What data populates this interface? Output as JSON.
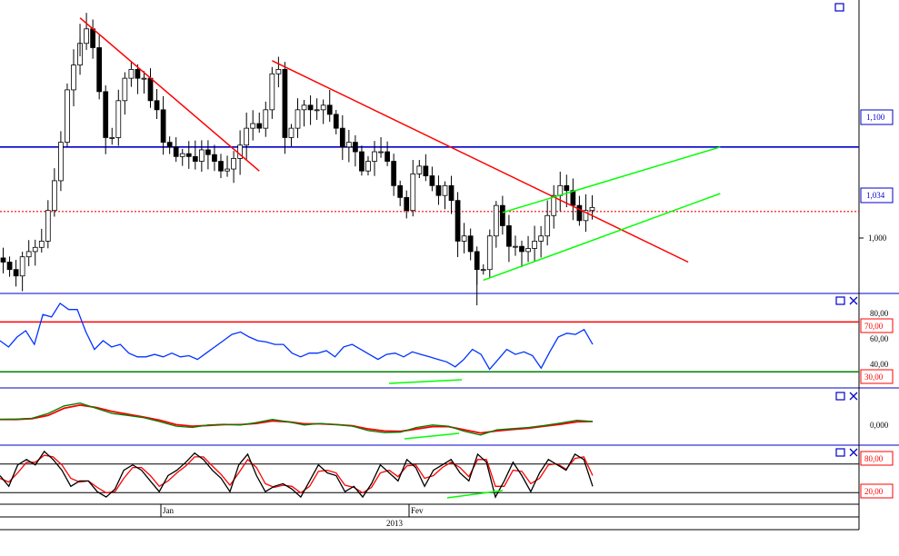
{
  "colors": {
    "up_candle": "#ffffff",
    "down_candle": "#000000",
    "candle_wick": "#000000",
    "trendline": "#ff0000",
    "channel": "#00ff00",
    "level_line": "#0000cc",
    "current_price_line": "#ff0000",
    "rsi_line": "#0033ff",
    "rsi_upper_band": "#ff0000",
    "rsi_lower_band": "#008000",
    "macd_line": "#008000",
    "signal_line": "#ff0000",
    "stoch_k": "#000000",
    "stoch_d": "#ff0000",
    "divergence_line": "#00ff00",
    "panel_border": "#0000cc",
    "axis_text": "#000000"
  },
  "icons": {
    "window_button": "window-restore-icon",
    "close_button": "close-icon"
  },
  "price_axis": {
    "ticks": [
      "1,000"
    ],
    "level_label": "1,100",
    "current_label": "1,034"
  },
  "rsi_axis": {
    "ticks": [
      "80,00",
      "60,00",
      "40,00"
    ],
    "upper_label": "70,00",
    "lower_label": "30,00"
  },
  "macd_axis": {
    "ticks": [
      "0,000"
    ]
  },
  "stoch_axis": {
    "upper_label": "80,00",
    "lower_label": "20,00"
  },
  "time_axis": {
    "month_labels": [
      "Jan",
      "Fev"
    ],
    "year_label": "2013"
  },
  "chart_data": [
    {
      "type": "candlestick",
      "panel": "price",
      "y_scale": "log",
      "ylim": [
        0.96,
        1.26
      ],
      "x_index_count": 93,
      "horizontal_levels": [
        {
          "value": 1.1,
          "label": "1,100",
          "style": "solid",
          "color": "#0000cc"
        },
        {
          "value": 1.034,
          "label": "1,034",
          "style": "dotted",
          "color": "#ff0000"
        }
      ],
      "trendlines": [
        {
          "color": "#ff0000",
          "points": [
            [
              12,
              1.245
            ],
            [
              40,
              1.075
            ]
          ]
        },
        {
          "color": "#ff0000",
          "points": [
            [
              42,
              1.195
            ],
            [
              107,
              0.985
            ]
          ]
        },
        {
          "color": "#00ff00",
          "points": [
            [
              78,
              1.033
            ],
            [
              112,
              1.1
            ]
          ]
        },
        {
          "color": "#00ff00",
          "points": [
            [
              75,
              0.968
            ],
            [
              112,
              1.052
            ]
          ]
        }
      ],
      "close_series": [
        0.985,
        0.978,
        0.972,
        0.99,
        0.995,
        0.999,
        1.005,
        1.035,
        1.065,
        1.105,
        1.162,
        1.19,
        1.215,
        1.232,
        1.21,
        1.16,
        1.11,
        1.11,
        1.15,
        1.175,
        1.185,
        1.175,
        1.175,
        1.15,
        1.14,
        1.105,
        1.1,
        1.09,
        1.093,
        1.09,
        1.085,
        1.097,
        1.092,
        1.085,
        1.075,
        1.077,
        1.088,
        1.102,
        1.12,
        1.125,
        1.12,
        1.14,
        1.18,
        1.185,
        1.11,
        1.12,
        1.14,
        1.145,
        1.14,
        1.14,
        1.145,
        1.135,
        1.12,
        1.1,
        1.105,
        1.095,
        1.075,
        1.085,
        1.095,
        1.095,
        1.085,
        1.06,
        1.048,
        1.035,
        1.072,
        1.08,
        1.07,
        1.06,
        1.05,
        1.06,
        1.045,
        1.005,
        1.01,
        0.995,
        0.978,
        0.978,
        1.01,
        1.04,
        1.02,
        1.0,
        1.0,
        0.995,
        0.998,
        1.005,
        1.01,
        1.03,
        1.05,
        1.06,
        1.055,
        1.04,
        1.025,
        1.035,
        1.038
      ],
      "extremes": {
        "high": 1.238,
        "low": 0.945
      }
    },
    {
      "type": "line",
      "panel": "RSI",
      "ylim": [
        20,
        90
      ],
      "bands": [
        70,
        30
      ],
      "series": [
        {
          "values": [
            55,
            50,
            58,
            63,
            52,
            76,
            74,
            85,
            80,
            80,
            62,
            48,
            55,
            50,
            52,
            45,
            42,
            42,
            44,
            42,
            45,
            42,
            43,
            40,
            45,
            50,
            55,
            60,
            62,
            58,
            55,
            54,
            52,
            52,
            45,
            42,
            45,
            45,
            47,
            42,
            50,
            52,
            48,
            44,
            40,
            44,
            45,
            42,
            46,
            44,
            42,
            40,
            38,
            34,
            40,
            48,
            44,
            32,
            40,
            48,
            44,
            46,
            43,
            33,
            46,
            58,
            61,
            60,
            64,
            52
          ]
        }
      ]
    },
    {
      "type": "line",
      "panel": "MACD",
      "ylim": [
        -0.03,
        0.1
      ],
      "series": [
        {
          "values": [
            0.03,
            0.031,
            0.033,
            0.045,
            0.064,
            0.071,
            0.058,
            0.045,
            0.04,
            0.034,
            0.024,
            0.013,
            0.01,
            0.016,
            0.018,
            0.016,
            0.022,
            0.03,
            0.024,
            0.016,
            0.02,
            0.017,
            0.013,
            0.002,
            -0.003,
            -0.002,
            0.01,
            0.016,
            0.013,
            0.0,
            -0.009,
            0.004,
            0.007,
            0.01,
            0.015,
            0.021,
            0.028,
            0.025
          ]
        },
        {
          "values": [
            0.03,
            0.03,
            0.032,
            0.04,
            0.058,
            0.066,
            0.06,
            0.05,
            0.043,
            0.036,
            0.028,
            0.017,
            0.013,
            0.015,
            0.017,
            0.017,
            0.02,
            0.026,
            0.024,
            0.019,
            0.019,
            0.017,
            0.014,
            0.006,
            0.001,
            0.0,
            0.006,
            0.012,
            0.012,
            0.004,
            -0.004,
            0.001,
            0.005,
            0.008,
            0.013,
            0.018,
            0.024,
            0.025
          ]
        }
      ]
    },
    {
      "type": "line",
      "panel": "Stochastic",
      "ylim": [
        0,
        100
      ],
      "bands": [
        80,
        20
      ],
      "series": [
        {
          "values": [
            50,
            30,
            70,
            80,
            70,
            95,
            80,
            60,
            30,
            40,
            40,
            20,
            10,
            25,
            60,
            70,
            60,
            40,
            20,
            50,
            60,
            75,
            92,
            80,
            60,
            45,
            20,
            70,
            90,
            50,
            20,
            30,
            35,
            25,
            10,
            40,
            70,
            55,
            50,
            20,
            30,
            10,
            35,
            70,
            55,
            40,
            80,
            65,
            30,
            60,
            70,
            80,
            55,
            40,
            90,
            75,
            10,
            40,
            75,
            50,
            20,
            55,
            80,
            70,
            60,
            90,
            80,
            30
          ]
        },
        {
          "values": [
            45,
            38,
            55,
            75,
            75,
            88,
            85,
            70,
            45,
            38,
            40,
            28,
            18,
            20,
            45,
            65,
            65,
            50,
            30,
            40,
            55,
            68,
            85,
            85,
            68,
            52,
            32,
            55,
            80,
            65,
            35,
            28,
            32,
            30,
            18,
            30,
            58,
            60,
            55,
            32,
            28,
            18,
            28,
            55,
            60,
            48,
            68,
            70,
            45,
            50,
            65,
            75,
            65,
            48,
            80,
            80,
            30,
            30,
            60,
            58,
            35,
            45,
            70,
            72,
            62,
            82,
            85,
            50
          ]
        }
      ]
    }
  ]
}
